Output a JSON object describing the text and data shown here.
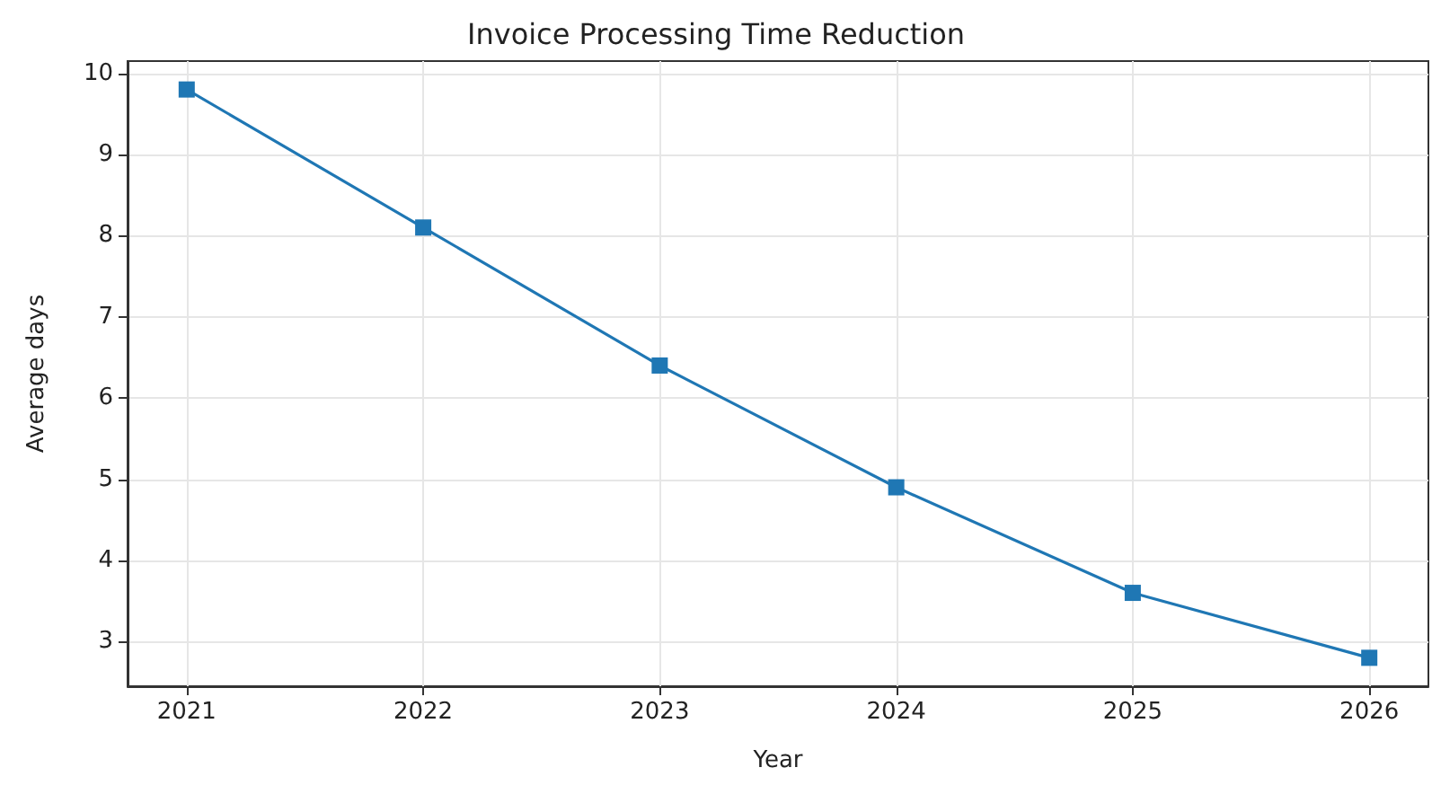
{
  "chart_data": {
    "type": "line",
    "title": "Invoice Processing Time Reduction",
    "xlabel": "Year",
    "ylabel": "Average days",
    "x": [
      2021,
      2022,
      2023,
      2024,
      2025,
      2026
    ],
    "series": [
      {
        "color": "#1f77b4",
        "values": [
          9.8,
          8.1,
          6.4,
          4.9,
          3.6,
          2.8
        ]
      }
    ],
    "xlim": [
      2020.75,
      2026.25
    ],
    "xticks": [
      2021,
      2022,
      2023,
      2024,
      2025,
      2026
    ],
    "ylim": [
      2.45,
      10.15
    ],
    "yticks": [
      3,
      4,
      5,
      6,
      7,
      8,
      9,
      10
    ],
    "grid": true,
    "marker": "square",
    "line_style": "solid"
  }
}
